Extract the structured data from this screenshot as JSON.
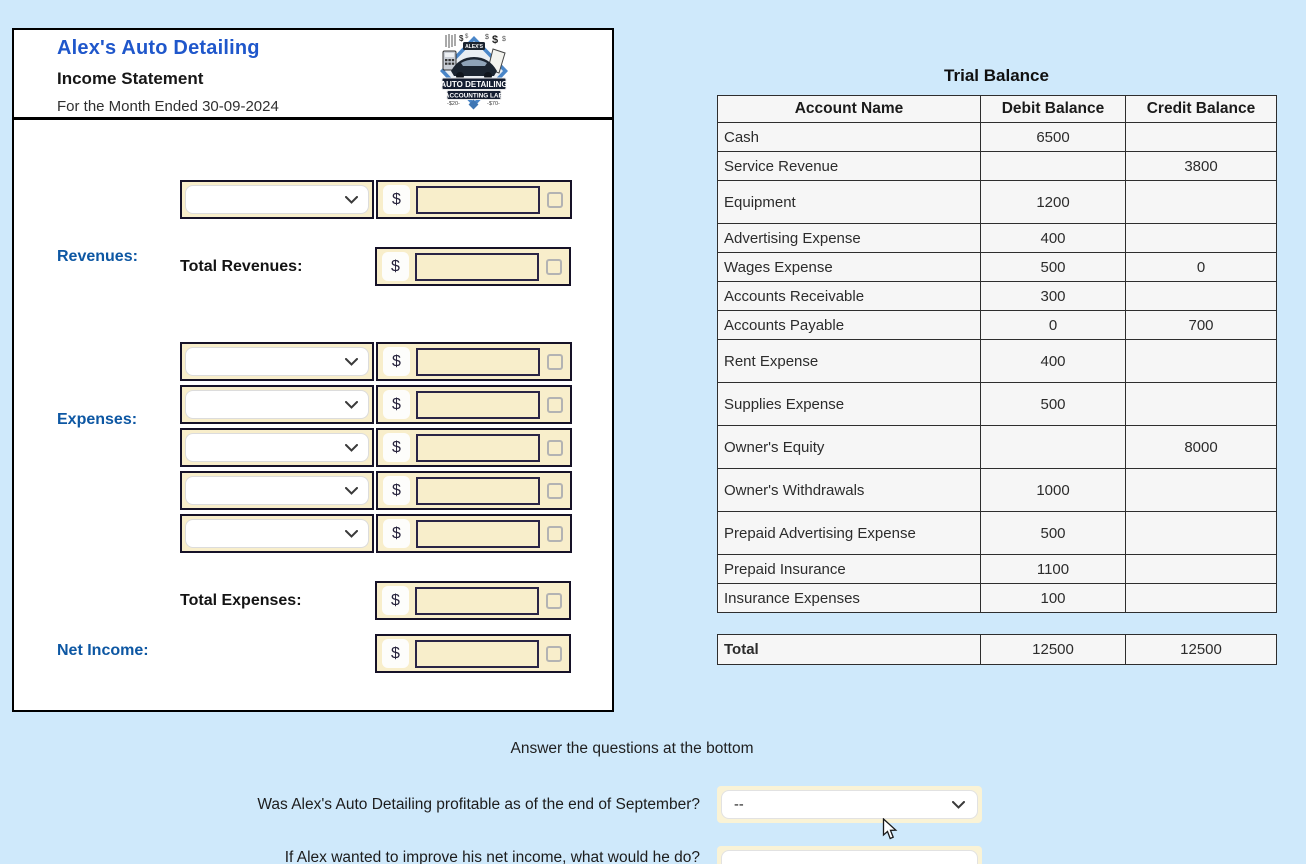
{
  "colors": {
    "page_background": "#cfe9fb",
    "title_blue": "#1f57cb",
    "section_blue": "#0d57a3",
    "row_yellow": "#f8eecb",
    "input_border": "#2a2445"
  },
  "income_statement": {
    "company": "Alex's Auto Detailing",
    "title": "Income Statement",
    "period": "For the Month Ended 30-09-2024",
    "currency_symbol": "$",
    "logo": {
      "top_label": "ALEX'S",
      "banner_line1": "AUTO DETAILING",
      "banner_line2": "ACCOUNTING LAB",
      "left_mark": "$20",
      "right_mark": "$70"
    },
    "labels": {
      "revenues": "Revenues:",
      "total_revenues": "Total Revenues:",
      "expenses": "Expenses:",
      "total_expenses": "Total Expenses:",
      "net_income": "Net Income:"
    },
    "revenue_entry": {
      "account": "",
      "amount": ""
    },
    "expense_entries": [
      {
        "account": "",
        "amount": ""
      },
      {
        "account": "",
        "amount": ""
      },
      {
        "account": "",
        "amount": ""
      },
      {
        "account": "",
        "amount": ""
      },
      {
        "account": "",
        "amount": ""
      }
    ],
    "total_revenues_value": "",
    "total_expenses_value": "",
    "net_income_value": ""
  },
  "trial_balance": {
    "title": "Trial Balance",
    "headers": [
      "Account Name",
      "Debit Balance",
      "Credit Balance"
    ],
    "rows": [
      {
        "account": "Cash",
        "debit": "6500",
        "credit": ""
      },
      {
        "account": "Service Revenue",
        "debit": "",
        "credit": "3800"
      },
      {
        "account": "Equipment",
        "debit": "1200",
        "credit": ""
      },
      {
        "account": "Advertising Expense",
        "debit": "400",
        "credit": ""
      },
      {
        "account": "Wages Expense",
        "debit": "500",
        "credit": "0"
      },
      {
        "account": "Accounts Receivable",
        "debit": "300",
        "credit": ""
      },
      {
        "account": "Accounts Payable",
        "debit": "0",
        "credit": "700"
      },
      {
        "account": "Rent Expense",
        "debit": "400",
        "credit": ""
      },
      {
        "account": "Supplies Expense",
        "debit": "500",
        "credit": ""
      },
      {
        "account": "Owner's Equity",
        "debit": "",
        "credit": "8000"
      },
      {
        "account": "Owner's Withdrawals",
        "debit": "1000",
        "credit": ""
      },
      {
        "account": "Prepaid Advertising Expense",
        "debit": "500",
        "credit": ""
      },
      {
        "account": "Prepaid Insurance",
        "debit": "1100",
        "credit": ""
      },
      {
        "account": "Insurance Expenses",
        "debit": "100",
        "credit": ""
      }
    ],
    "total": {
      "label": "Total",
      "debit": "12500",
      "credit": "12500"
    }
  },
  "questions": {
    "instruction": "Answer the questions at the bottom",
    "q1": {
      "text": "Was Alex's Auto Detailing profitable as of the end of September?",
      "selected": "--"
    },
    "q2": {
      "text": "If Alex wanted to improve his net income, what would he do?",
      "value": ""
    }
  }
}
